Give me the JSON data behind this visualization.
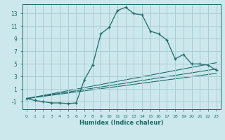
{
  "xlabel": "Humidex (Indice chaleur)",
  "ylabel": "",
  "background_color": "#cce8ec",
  "grid_color": "#aacdd4",
  "line_color": "#1a6b6b",
  "xlim": [
    -0.5,
    23.5
  ],
  "ylim": [
    -2.2,
    14.5
  ],
  "xticks": [
    0,
    1,
    2,
    3,
    4,
    5,
    6,
    7,
    8,
    9,
    10,
    11,
    12,
    13,
    14,
    15,
    16,
    17,
    18,
    19,
    20,
    21,
    22,
    23
  ],
  "yticks": [
    -1,
    1,
    3,
    5,
    7,
    9,
    11,
    13
  ],
  "main_x": [
    0,
    1,
    2,
    3,
    4,
    5,
    6,
    7,
    8,
    9,
    10,
    11,
    12,
    13,
    14,
    15,
    16,
    17,
    18,
    19,
    20,
    21,
    22,
    23
  ],
  "main_y": [
    -0.5,
    -0.8,
    -1.0,
    -1.2,
    -1.2,
    -1.3,
    -1.2,
    2.5,
    4.8,
    9.8,
    10.8,
    13.5,
    14.0,
    13.0,
    12.8,
    10.2,
    9.8,
    8.8,
    5.8,
    6.5,
    5.0,
    5.0,
    4.8,
    4.0
  ],
  "ref_lines": [
    {
      "x": [
        0,
        23
      ],
      "y": [
        -0.5,
        5.2
      ]
    },
    {
      "x": [
        0,
        23
      ],
      "y": [
        -0.5,
        4.2
      ]
    },
    {
      "x": [
        0,
        23
      ],
      "y": [
        -0.5,
        3.5
      ]
    }
  ]
}
